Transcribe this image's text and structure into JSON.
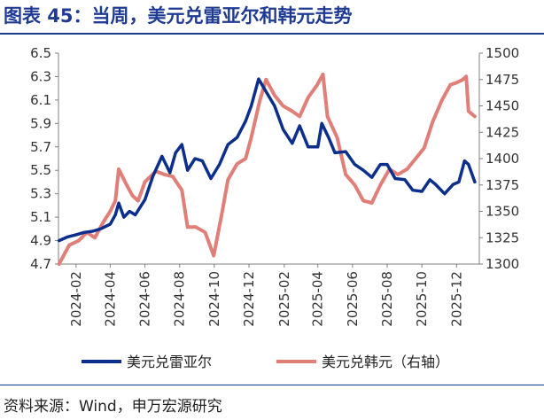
{
  "header": {
    "title": "图表 45：当周，美元兑雷亚尔和韩元走势"
  },
  "footer": {
    "source": "资料来源：Wind，申万宏源研究"
  },
  "colors": {
    "brl": "#0D2F8C",
    "krw": "#E07E78",
    "title": "#1F3A93",
    "axis": "#7F7F7F"
  },
  "chart_data": {
    "type": "line",
    "x_ticks": [
      "2024-02",
      "2024-04",
      "2024-06",
      "2024-08",
      "2024-10",
      "2024-12",
      "2025-02",
      "2025-04",
      "2025-06",
      "2025-08",
      "2025-10",
      "2025-12"
    ],
    "y_left": {
      "range": [
        4.7,
        6.5
      ],
      "ticks": [
        "4.7",
        "4.9",
        "5.1",
        "5.3",
        "5.5",
        "5.7",
        "5.9",
        "6.1",
        "6.3",
        "6.5"
      ]
    },
    "y_right": {
      "range": [
        1300,
        1500
      ],
      "ticks": [
        "1300",
        "1325",
        "1350",
        "1375",
        "1400",
        "1425",
        "1450",
        "1475",
        "1500"
      ]
    },
    "legend": [
      "美元兑雷亚尔",
      "美元兑韩元（右轴）"
    ],
    "series": [
      {
        "name": "美元兑雷亚尔",
        "axis": "left",
        "points": [
          [
            "2024-01-02",
            4.9
          ],
          [
            "2024-01-16",
            4.93
          ],
          [
            "2024-02-01",
            4.95
          ],
          [
            "2024-02-15",
            4.97
          ],
          [
            "2024-03-01",
            4.98
          ],
          [
            "2024-03-15",
            5.0
          ],
          [
            "2024-04-01",
            5.04
          ],
          [
            "2024-04-10",
            5.12
          ],
          [
            "2024-04-16",
            5.22
          ],
          [
            "2024-04-25",
            5.1
          ],
          [
            "2024-05-05",
            5.15
          ],
          [
            "2024-05-15",
            5.12
          ],
          [
            "2024-06-01",
            5.25
          ],
          [
            "2024-06-15",
            5.45
          ],
          [
            "2024-07-01",
            5.62
          ],
          [
            "2024-07-15",
            5.48
          ],
          [
            "2024-07-25",
            5.65
          ],
          [
            "2024-08-05",
            5.72
          ],
          [
            "2024-08-15",
            5.5
          ],
          [
            "2024-08-28",
            5.6
          ],
          [
            "2024-09-10",
            5.58
          ],
          [
            "2024-09-25",
            5.43
          ],
          [
            "2024-10-10",
            5.55
          ],
          [
            "2024-10-25",
            5.72
          ],
          [
            "2024-11-10",
            5.78
          ],
          [
            "2024-11-25",
            5.92
          ],
          [
            "2024-12-05",
            6.05
          ],
          [
            "2024-12-18",
            6.28
          ],
          [
            "2024-12-30",
            6.18
          ],
          [
            "2025-01-15",
            6.05
          ],
          [
            "2025-01-30",
            5.85
          ],
          [
            "2025-02-15",
            5.73
          ],
          [
            "2025-02-28",
            5.88
          ],
          [
            "2025-03-15",
            5.7
          ],
          [
            "2025-04-01",
            5.7
          ],
          [
            "2025-04-08",
            5.9
          ],
          [
            "2025-04-20",
            5.78
          ],
          [
            "2025-05-01",
            5.65
          ],
          [
            "2025-05-20",
            5.66
          ],
          [
            "2025-06-05",
            5.55
          ],
          [
            "2025-06-20",
            5.5
          ],
          [
            "2025-07-05",
            5.44
          ],
          [
            "2025-07-20",
            5.55
          ],
          [
            "2025-08-01",
            5.55
          ],
          [
            "2025-08-15",
            5.43
          ],
          [
            "2025-09-01",
            5.42
          ],
          [
            "2025-09-15",
            5.33
          ],
          [
            "2025-10-01",
            5.32
          ],
          [
            "2025-10-15",
            5.42
          ],
          [
            "2025-10-25",
            5.38
          ],
          [
            "2025-11-10",
            5.3
          ],
          [
            "2025-11-25",
            5.38
          ],
          [
            "2025-12-05",
            5.4
          ],
          [
            "2025-12-15",
            5.58
          ],
          [
            "2025-12-22",
            5.55
          ],
          [
            "2026-01-02",
            5.4
          ]
        ]
      },
      {
        "name": "美元兑韩元（右轴）",
        "axis": "right",
        "points": [
          [
            "2024-01-02",
            1300
          ],
          [
            "2024-01-20",
            1318
          ],
          [
            "2024-02-05",
            1322
          ],
          [
            "2024-02-20",
            1330
          ],
          [
            "2024-03-05",
            1325
          ],
          [
            "2024-03-20",
            1340
          ],
          [
            "2024-04-01",
            1350
          ],
          [
            "2024-04-10",
            1360
          ],
          [
            "2024-04-16",
            1390
          ],
          [
            "2024-04-30",
            1375
          ],
          [
            "2024-05-10",
            1365
          ],
          [
            "2024-05-20",
            1360
          ],
          [
            "2024-06-01",
            1378
          ],
          [
            "2024-06-20",
            1388
          ],
          [
            "2024-07-05",
            1385
          ],
          [
            "2024-07-20",
            1383
          ],
          [
            "2024-08-05",
            1370
          ],
          [
            "2024-08-15",
            1335
          ],
          [
            "2024-08-30",
            1335
          ],
          [
            "2024-09-15",
            1330
          ],
          [
            "2024-09-30",
            1308
          ],
          [
            "2024-10-15",
            1350
          ],
          [
            "2024-10-25",
            1380
          ],
          [
            "2024-11-10",
            1395
          ],
          [
            "2024-11-25",
            1400
          ],
          [
            "2024-12-05",
            1420
          ],
          [
            "2024-12-20",
            1455
          ],
          [
            "2024-12-31",
            1475
          ],
          [
            "2025-01-15",
            1460
          ],
          [
            "2025-01-30",
            1450
          ],
          [
            "2025-02-15",
            1445
          ],
          [
            "2025-02-28",
            1440
          ],
          [
            "2025-03-15",
            1458
          ],
          [
            "2025-03-31",
            1470
          ],
          [
            "2025-04-10",
            1480
          ],
          [
            "2025-04-18",
            1440
          ],
          [
            "2025-05-05",
            1420
          ],
          [
            "2025-05-20",
            1385
          ],
          [
            "2025-06-05",
            1375
          ],
          [
            "2025-06-20",
            1360
          ],
          [
            "2025-07-05",
            1358
          ],
          [
            "2025-07-20",
            1375
          ],
          [
            "2025-08-05",
            1390
          ],
          [
            "2025-08-20",
            1385
          ],
          [
            "2025-09-05",
            1390
          ],
          [
            "2025-09-20",
            1400
          ],
          [
            "2025-10-05",
            1410
          ],
          [
            "2025-10-20",
            1435
          ],
          [
            "2025-11-05",
            1455
          ],
          [
            "2025-11-20",
            1470
          ],
          [
            "2025-12-01",
            1472
          ],
          [
            "2025-12-12",
            1475
          ],
          [
            "2025-12-18",
            1478
          ],
          [
            "2025-12-22",
            1445
          ],
          [
            "2026-01-02",
            1440
          ]
        ]
      }
    ]
  }
}
